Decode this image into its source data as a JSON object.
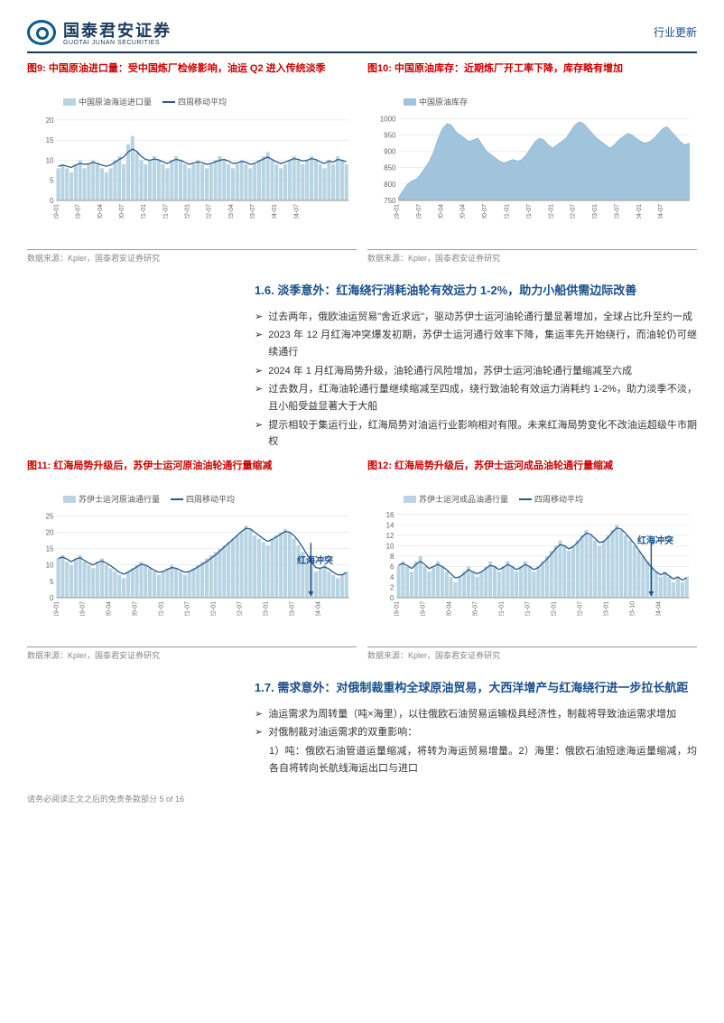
{
  "header": {
    "company_cn": "国泰君安证券",
    "company_en": "GUOTAI JUNAN SECURITIES",
    "doc_type": "行业更新"
  },
  "chart9": {
    "prefix": "图9:",
    "title": "中国原油进口量：受中国炼厂检修影响，油运 Q2 进入传统淡季",
    "legend_bar": "中国原油海运进口量",
    "legend_line": "四周移动平均",
    "y_ticks": [
      "0",
      "5",
      "10",
      "15",
      "20"
    ],
    "x_ticks": [
      "19-01",
      "19-07",
      "20-04",
      "20-07",
      "21-01",
      "21-07",
      "22-01",
      "22-07",
      "23-04",
      "23-07",
      "24-01",
      "24-07"
    ],
    "ylim": [
      0,
      22
    ],
    "bar_color": "#b8d4e3",
    "line_color": "#2a5a8a",
    "bars": [
      8,
      9,
      8,
      7,
      9,
      10,
      8,
      9,
      10,
      9,
      8,
      7,
      8,
      10,
      11,
      9,
      14,
      16,
      12,
      10,
      9,
      10,
      11,
      10,
      9,
      8,
      10,
      11,
      10,
      9,
      8,
      9,
      10,
      9,
      8,
      9,
      10,
      11,
      10,
      9,
      8,
      9,
      10,
      9,
      8,
      9,
      10,
      11,
      12,
      10,
      9,
      8,
      9,
      10,
      11,
      10,
      9,
      10,
      11,
      10,
      9,
      8,
      10,
      9,
      11,
      10,
      9
    ],
    "line": [
      8.5,
      8.8,
      8.5,
      8.2,
      8.8,
      9.2,
      9.0,
      9.1,
      9.5,
      9.2,
      8.8,
      8.5,
      8.8,
      9.5,
      10.2,
      10.8,
      12.0,
      12.8,
      12.2,
      11.0,
      10.2,
      10.0,
      10.3,
      10.1,
      9.6,
      9.2,
      9.8,
      10.2,
      10.0,
      9.5,
      9.0,
      9.3,
      9.6,
      9.4,
      9.0,
      9.2,
      9.6,
      10.0,
      10.2,
      9.8,
      9.2,
      9.3,
      9.7,
      9.5,
      9.0,
      9.2,
      9.8,
      10.3,
      10.8,
      10.2,
      9.6,
      9.2,
      9.5,
      10.0,
      10.4,
      10.2,
      9.8,
      10.0,
      10.4,
      10.2,
      9.6,
      9.2,
      9.8,
      9.5,
      10.2,
      10.0,
      9.6
    ],
    "source": "数据来源：Kpler，国泰君安证券研究"
  },
  "chart10": {
    "prefix": "图10:",
    "title": "中国原油库存：近期炼厂开工率下降，库存略有增加",
    "legend_area": "中国原油库存",
    "y_ticks": [
      "750",
      "800",
      "850",
      "900",
      "950",
      "1000"
    ],
    "x_ticks": [
      "2019-01",
      "2019-07",
      "2020-04",
      "2020-04",
      "2020-07",
      "2021-01",
      "2021-07",
      "2022-01",
      "2022-07",
      "2023-01",
      "2023-07",
      "2024-01",
      "2024-07"
    ],
    "ylim": [
      750,
      1020
    ],
    "area_color": "#a0c4dc",
    "data": [
      760,
      780,
      800,
      810,
      815,
      830,
      850,
      870,
      900,
      940,
      970,
      985,
      980,
      960,
      950,
      940,
      930,
      935,
      940,
      920,
      900,
      890,
      880,
      870,
      865,
      870,
      875,
      870,
      875,
      890,
      910,
      930,
      940,
      935,
      920,
      910,
      920,
      930,
      940,
      960,
      980,
      990,
      985,
      970,
      955,
      940,
      930,
      920,
      910,
      920,
      935,
      945,
      955,
      950,
      940,
      930,
      925,
      930,
      940,
      955,
      970,
      975,
      960,
      945,
      930,
      920,
      925
    ],
    "source": "数据来源：Kpler，国泰君安证券研究"
  },
  "section16": {
    "num": "1.6.",
    "title": "淡季意外：红海绕行消耗油轮有效运力 1-2%，助力小船供需边际改善",
    "bullets": [
      "过去两年，俄欧油运贸易\"舍近求远\"，驱动苏伊士运河油轮通行量显著增加，全球占比升至约一成",
      "2023 年 12 月红海冲突爆发初期，苏伊士运河通行效率下降，集运率先开始绕行，而油轮仍可继续通行",
      "2024 年 1 月红海局势升级，油轮通行风险增加，苏伊士运河油轮通行量缩减至六成",
      "过去数月，红海油轮通行量继续缩减至四成，绕行致油轮有效运力消耗约 1-2%，助力淡季不淡，且小船受益显著大于大船",
      "提示相较于集运行业，红海局势对油运行业影响相对有限。未来红海局势变化不改油运超级牛市期权"
    ]
  },
  "chart11": {
    "prefix": "图11:",
    "title": "红海局势升级后，苏伊士运河原油油轮通行量缩减",
    "legend_bar": "苏伊士运河原油通行量",
    "legend_line": "四周移动平均",
    "y_ticks": [
      "0",
      "5",
      "10",
      "15",
      "20",
      "25"
    ],
    "x_ticks": [
      "19-01",
      "19-07",
      "20-04",
      "20-07",
      "21-01",
      "21-07",
      "22-01",
      "22-07",
      "23-01",
      "23-07",
      "24-04"
    ],
    "ylim": [
      0,
      27
    ],
    "bar_color": "#b8d4e3",
    "line_color": "#2a5a8a",
    "annotation": "红海冲突",
    "bars": [
      12,
      13,
      11,
      10,
      12,
      13,
      11,
      10,
      9,
      11,
      12,
      10,
      9,
      8,
      7,
      6,
      8,
      9,
      10,
      11,
      10,
      9,
      8,
      7,
      8,
      9,
      10,
      9,
      8,
      7,
      8,
      9,
      10,
      11,
      12,
      13,
      14,
      15,
      16,
      17,
      18,
      19,
      20,
      22,
      21,
      19,
      18,
      17,
      16,
      18,
      19,
      20,
      21,
      20,
      18,
      16,
      14,
      12,
      10,
      8,
      9,
      10,
      8,
      7,
      6,
      7,
      8
    ],
    "line": [
      12,
      12.4,
      11.8,
      11.0,
      11.8,
      12.2,
      11.4,
      10.6,
      10.0,
      10.8,
      11.2,
      10.6,
      9.8,
      8.8,
      7.8,
      7.2,
      7.8,
      8.6,
      9.4,
      10.2,
      10.0,
      9.2,
      8.4,
      7.8,
      8.0,
      8.6,
      9.2,
      9.0,
      8.4,
      7.8,
      8.0,
      8.6,
      9.4,
      10.2,
      11.0,
      12.0,
      13.0,
      14.2,
      15.4,
      16.6,
      17.8,
      19.0,
      20.2,
      21.2,
      21.0,
      20.0,
      19.0,
      18.0,
      17.2,
      17.8,
      18.6,
      19.4,
      20.2,
      20.0,
      19.0,
      17.4,
      15.4,
      13.2,
      11.0,
      9.2,
      9.0,
      9.4,
      8.8,
      7.8,
      7.0,
      7.0,
      7.6
    ],
    "source": "数据来源：Kpler，国泰君安证券研究"
  },
  "chart12": {
    "prefix": "图12:",
    "title": "红海局势升级后，苏伊士运河成品油轮通行量缩减",
    "legend_bar": "苏伊士运河成品油通行量",
    "legend_line": "四周移动平均",
    "y_ticks": [
      "0",
      "2",
      "4",
      "6",
      "8",
      "10",
      "12",
      "14",
      "16"
    ],
    "x_ticks": [
      "19-01",
      "19-07",
      "20-04",
      "20-07",
      "21-01",
      "21-07",
      "22-01",
      "22-07",
      "23-01",
      "23-10",
      "24-04"
    ],
    "ylim": [
      0,
      17
    ],
    "bar_color": "#b8d4e3",
    "line_color": "#2a5a8a",
    "annotation": "红海冲突",
    "bars": [
      6,
      7,
      6,
      5,
      7,
      8,
      6,
      5,
      6,
      7,
      6,
      5,
      4,
      3,
      4,
      5,
      6,
      5,
      4,
      5,
      6,
      7,
      6,
      5,
      6,
      7,
      6,
      5,
      6,
      7,
      6,
      5,
      6,
      7,
      8,
      9,
      10,
      11,
      10,
      9,
      10,
      11,
      12,
      13,
      12,
      11,
      10,
      11,
      12,
      13,
      14,
      13,
      12,
      11,
      10,
      9,
      8,
      7,
      6,
      5,
      4,
      5,
      4,
      3,
      4,
      3,
      4
    ],
    "line": [
      6.2,
      6.6,
      6.2,
      5.6,
      6.4,
      7.0,
      6.4,
      5.6,
      6.0,
      6.4,
      6.0,
      5.4,
      4.6,
      3.8,
      4.0,
      4.6,
      5.4,
      5.0,
      4.6,
      5.0,
      5.6,
      6.2,
      6.0,
      5.4,
      5.8,
      6.4,
      6.0,
      5.4,
      5.8,
      6.4,
      6.0,
      5.4,
      5.8,
      6.6,
      7.4,
      8.4,
      9.4,
      10.2,
      10.0,
      9.4,
      9.8,
      10.6,
      11.6,
      12.4,
      12.2,
      11.4,
      10.6,
      10.8,
      11.6,
      12.6,
      13.4,
      13.2,
      12.4,
      11.4,
      10.4,
      9.2,
      8.0,
      6.8,
      5.8,
      5.0,
      4.4,
      4.8,
      4.2,
      3.6,
      4.0,
      3.4,
      3.8
    ],
    "source": "数据来源：Kpler，国泰君安证券研究"
  },
  "section17": {
    "num": "1.7.",
    "title": "需求意外：对俄制裁重构全球原油贸易，大西洋增产与红海绕行进一步拉长航距",
    "bullets": [
      "油运需求为周转量（吨×海里），以往俄欧石油贸易运输极具经济性，制裁将导致油运需求增加",
      "对俄制裁对油运需求的双重影响："
    ],
    "sub": "1）吨：俄欧石油管道运量缩减，将转为海运贸易增量。2）海里：俄欧石油短途海运量缩减，均各自将转向长航线海运出口与进口"
  },
  "footer": {
    "disclaimer": "请务必阅读正文之后的免责条款部分",
    "page": "5 of 16"
  }
}
